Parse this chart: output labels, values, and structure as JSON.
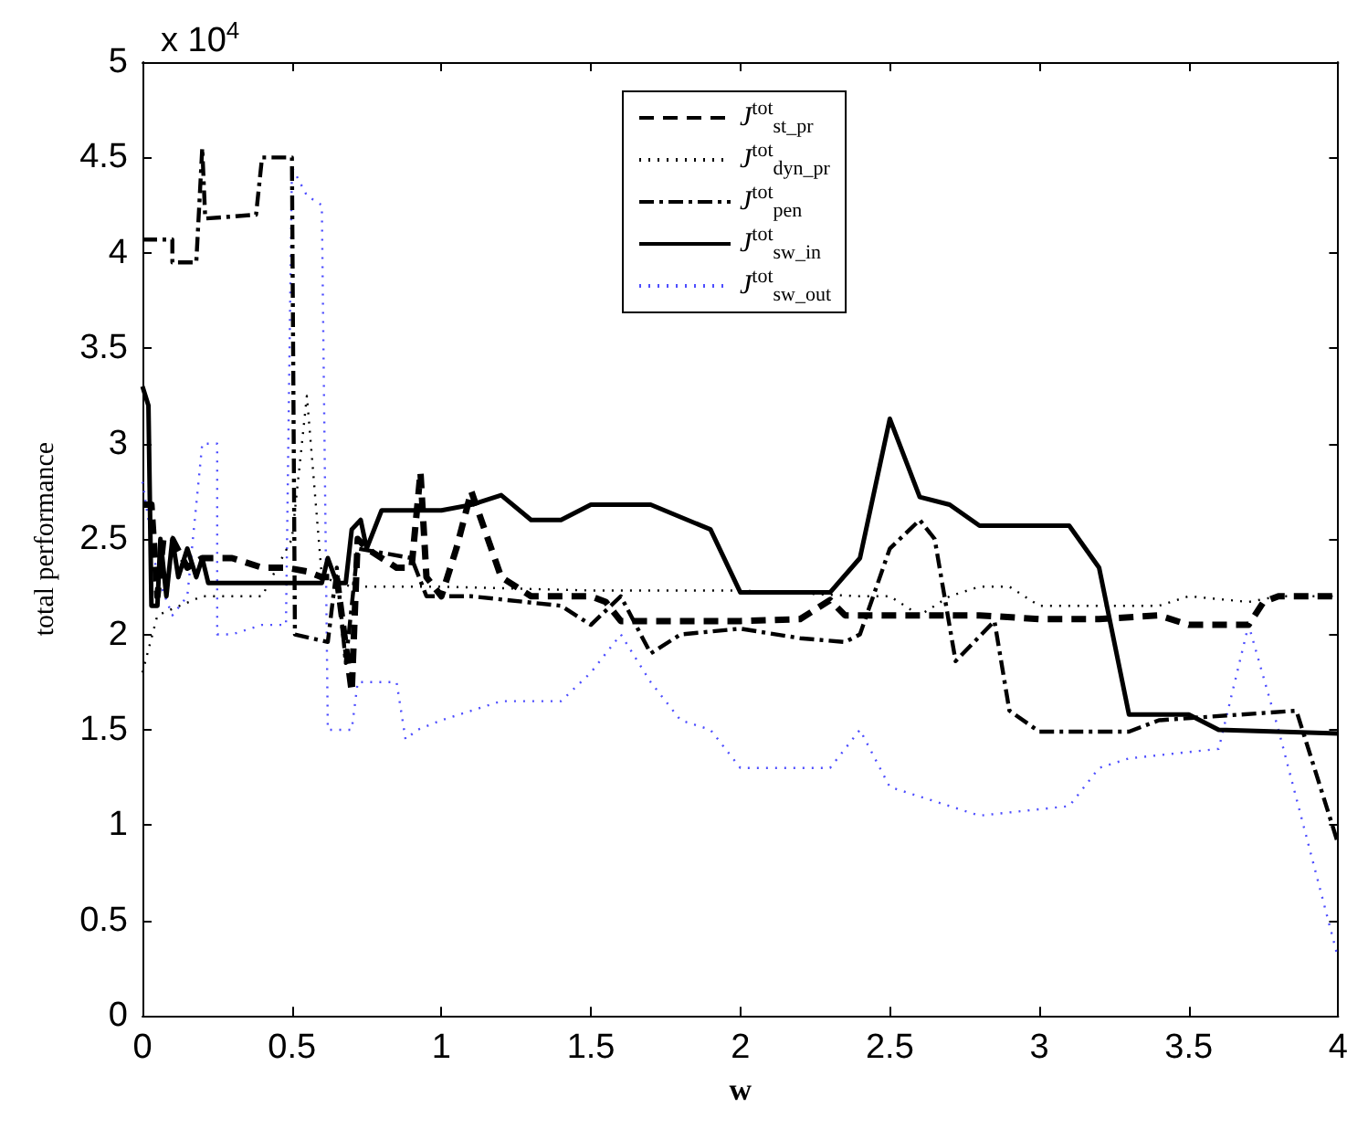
{
  "chart_data": {
    "type": "line",
    "xlabel": "w",
    "ylabel": "total performance",
    "annotations": [
      "x 10$^{4}$"
    ],
    "xlim": [
      0,
      4
    ],
    "xticks": [
      0,
      0.5,
      1,
      1.5,
      2,
      2.5,
      3,
      3.5,
      4
    ],
    "ylim": [
      0,
      5
    ],
    "yticks": [
      0,
      0.5,
      1,
      1.5,
      2,
      2.5,
      3,
      3.5,
      4,
      4.5,
      5
    ],
    "grid": false,
    "legend": "top",
    "marker": "none",
    "series": [
      {
        "name": "J$^{tot}$$_{st_pr}$",
        "color": "#000000",
        "line_style": "dashed",
        "x": [
          0,
          0.03,
          0.05,
          0.07,
          0.1,
          0.15,
          0.2,
          0.3,
          0.4,
          0.48,
          0.55,
          0.6,
          0.65,
          0.7,
          0.72,
          0.75,
          0.85,
          0.9,
          0.93,
          0.95,
          1.0,
          1.05,
          1.1,
          1.2,
          1.3,
          1.5,
          1.55,
          1.6,
          1.8,
          2.0,
          2.2,
          2.3,
          2.35,
          2.6,
          2.8,
          3.0,
          3.2,
          3.4,
          3.5,
          3.7,
          3.75,
          3.8,
          4.0
        ],
        "values": [
          2.68,
          2.68,
          2.2,
          2.5,
          2.5,
          2.35,
          2.4,
          2.4,
          2.35,
          2.35,
          2.33,
          2.3,
          2.3,
          1.7,
          2.5,
          2.45,
          2.35,
          2.35,
          2.85,
          2.3,
          2.2,
          2.45,
          2.75,
          2.3,
          2.2,
          2.2,
          2.17,
          2.07,
          2.07,
          2.07,
          2.08,
          2.18,
          2.1,
          2.1,
          2.1,
          2.08,
          2.08,
          2.1,
          2.05,
          2.05,
          2.17,
          2.2,
          2.2
        ]
      },
      {
        "name": "J$^{tot}$$_{dyn_pr}$",
        "color": "#000000",
        "line_style": "dotted",
        "x": [
          0,
          0.05,
          0.2,
          0.4,
          0.5,
          0.55,
          0.6,
          0.7,
          1.0,
          1.5,
          2.0,
          2.4,
          2.5,
          2.6,
          2.7,
          2.8,
          2.9,
          3.0,
          3.4,
          3.5,
          3.7,
          3.8,
          4.0
        ],
        "values": [
          1.8,
          2.1,
          2.2,
          2.2,
          2.5,
          3.25,
          2.3,
          2.25,
          2.25,
          2.23,
          2.23,
          2.2,
          2.2,
          2.1,
          2.2,
          2.25,
          2.25,
          2.15,
          2.15,
          2.2,
          2.17,
          2.2,
          2.2
        ]
      },
      {
        "name": "J$^{tot}$$_{pen}$",
        "color": "#000000",
        "line_style": "dashdot",
        "x": [
          0,
          0.1,
          0.1,
          0.18,
          0.2,
          0.21,
          0.38,
          0.4,
          0.5,
          0.51,
          0.62,
          0.65,
          0.68,
          0.72,
          0.9,
          0.95,
          1.1,
          1.4,
          1.5,
          1.6,
          1.7,
          1.8,
          2.0,
          2.2,
          2.35,
          2.4,
          2.5,
          2.6,
          2.65,
          2.72,
          2.85,
          2.9,
          3.0,
          3.3,
          3.4,
          3.86,
          4.0
        ],
        "values": [
          4.07,
          4.07,
          3.95,
          3.95,
          4.55,
          4.18,
          4.2,
          4.5,
          4.5,
          2.0,
          1.96,
          2.35,
          1.85,
          2.45,
          2.4,
          2.2,
          2.2,
          2.15,
          2.05,
          2.2,
          1.9,
          2.0,
          2.03,
          1.98,
          1.96,
          2.0,
          2.45,
          2.6,
          2.5,
          1.86,
          2.07,
          1.6,
          1.49,
          1.49,
          1.55,
          1.6,
          0.9
        ]
      },
      {
        "name": "J$^{tot}$$_{sw_in}$",
        "color": "#000000",
        "line_style": "solid",
        "x": [
          0,
          0.02,
          0.03,
          0.05,
          0.06,
          0.08,
          0.1,
          0.12,
          0.15,
          0.18,
          0.2,
          0.22,
          0.6,
          0.62,
          0.65,
          0.68,
          0.7,
          0.73,
          0.75,
          0.8,
          1.0,
          1.1,
          1.2,
          1.3,
          1.4,
          1.5,
          1.7,
          1.9,
          2.0,
          2.3,
          2.4,
          2.5,
          2.6,
          2.7,
          2.8,
          3.1,
          3.2,
          3.3,
          3.5,
          3.6,
          4.0
        ],
        "values": [
          3.3,
          3.2,
          2.15,
          2.15,
          2.5,
          2.2,
          2.5,
          2.3,
          2.45,
          2.3,
          2.4,
          2.27,
          2.27,
          2.4,
          2.27,
          2.27,
          2.55,
          2.6,
          2.45,
          2.65,
          2.65,
          2.68,
          2.73,
          2.6,
          2.6,
          2.68,
          2.68,
          2.55,
          2.22,
          2.22,
          2.4,
          3.13,
          2.72,
          2.68,
          2.57,
          2.57,
          2.35,
          1.58,
          1.58,
          1.5,
          1.48
        ]
      },
      {
        "name": "J$^{tot}$$_{sw_out}$",
        "color": "#4d4dff",
        "line_style": "dotted",
        "x": [
          0,
          0.05,
          0.1,
          0.15,
          0.2,
          0.25,
          0.25,
          0.3,
          0.4,
          0.48,
          0.5,
          0.55,
          0.6,
          0.62,
          0.7,
          0.72,
          0.85,
          0.88,
          0.92,
          1.0,
          1.2,
          1.4,
          1.5,
          1.6,
          1.7,
          1.8,
          1.9,
          2.0,
          2.3,
          2.4,
          2.5,
          2.8,
          3.1,
          3.2,
          3.3,
          3.6,
          3.7,
          3.8,
          3.9,
          4.0
        ],
        "values": [
          2.8,
          2.3,
          2.1,
          2.2,
          3.0,
          3.0,
          2.0,
          2.0,
          2.05,
          2.05,
          4.45,
          4.3,
          4.25,
          1.5,
          1.5,
          1.75,
          1.75,
          1.45,
          1.5,
          1.55,
          1.65,
          1.65,
          1.8,
          2.0,
          1.75,
          1.55,
          1.5,
          1.3,
          1.3,
          1.5,
          1.2,
          1.05,
          1.1,
          1.3,
          1.35,
          1.4,
          2.05,
          1.5,
          0.9,
          0.3
        ]
      }
    ]
  }
}
